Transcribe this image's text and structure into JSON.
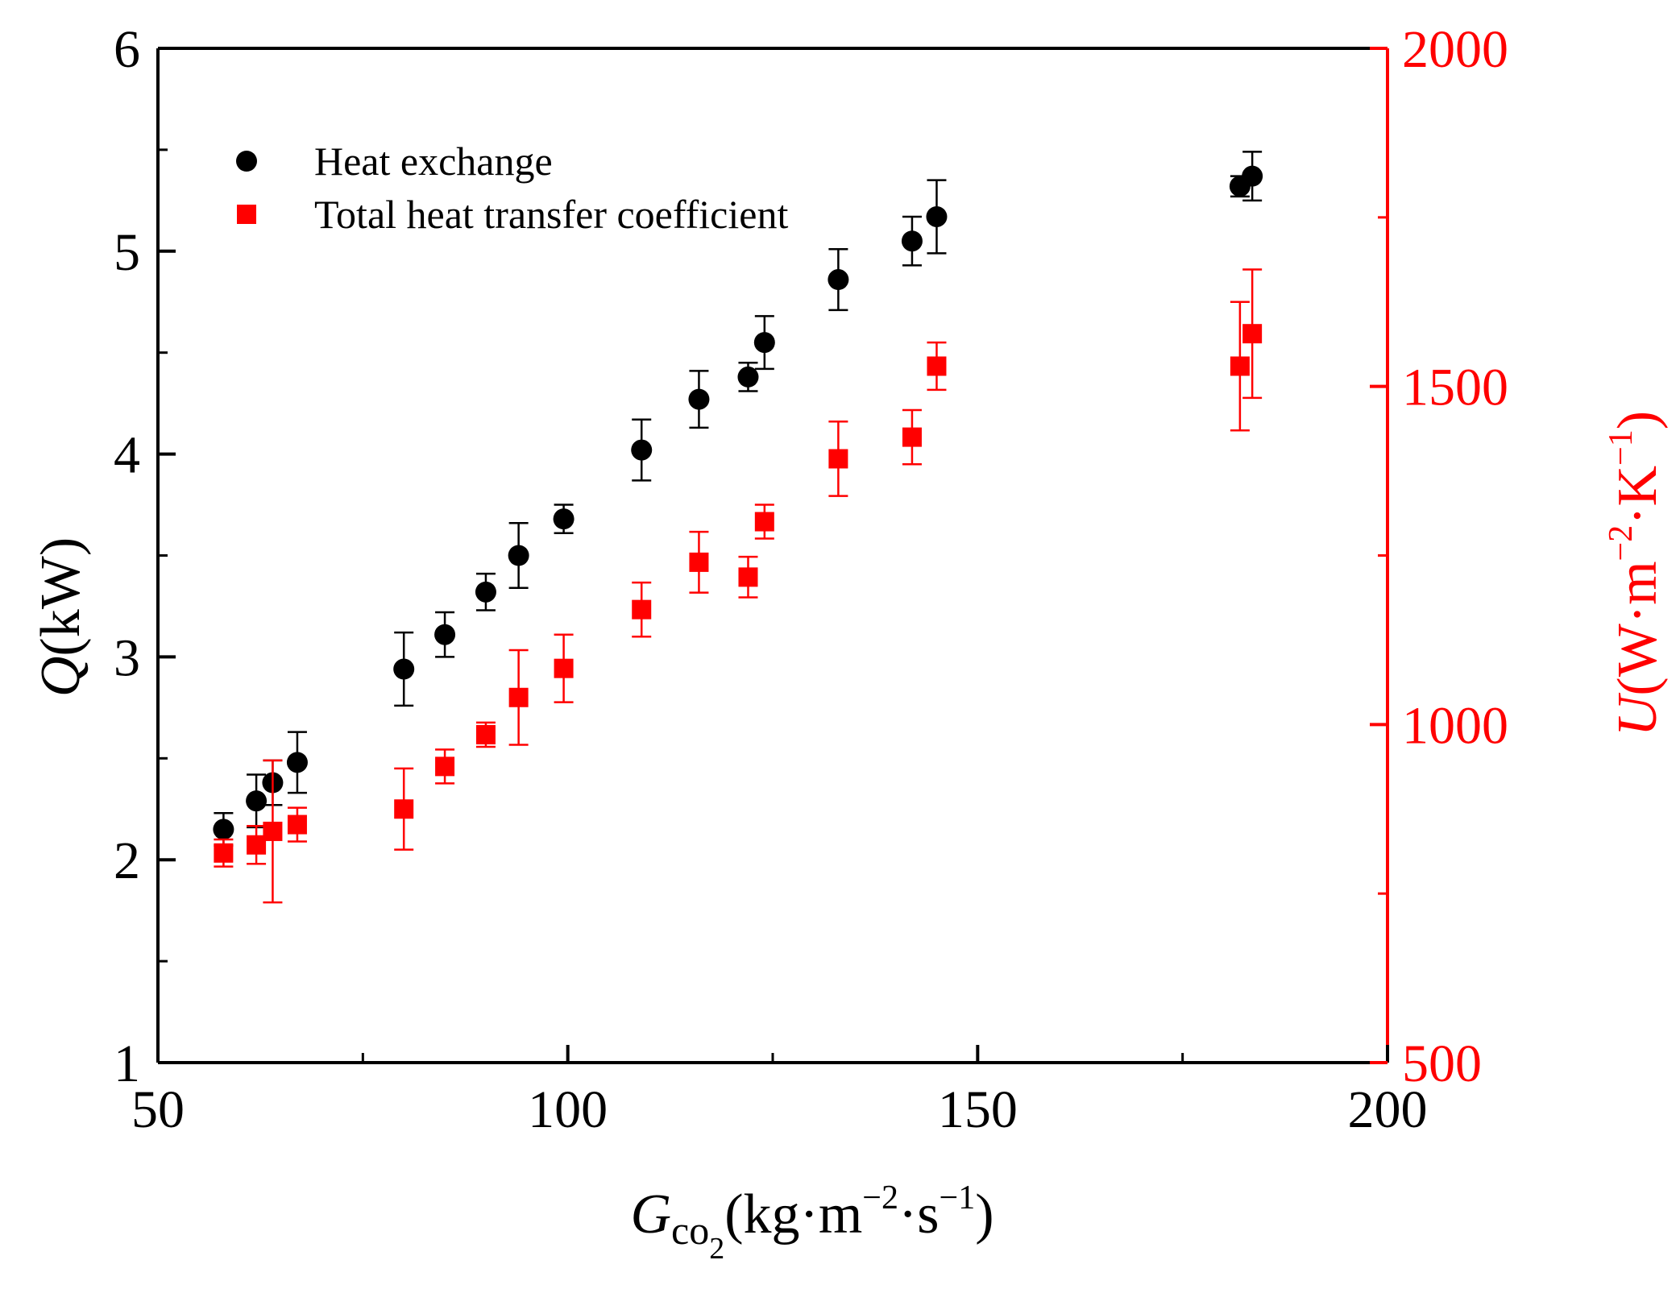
{
  "chart_data": {
    "type": "scatter",
    "title": "",
    "x_axis": {
      "label_var": "G",
      "label_sub": "co",
      "label_subsub": "2",
      "label_open": "(kg·m",
      "label_sup1": "−2",
      "label_mid": "·s",
      "label_sup2": "−1",
      "label_close": ")",
      "range": [
        50,
        200
      ],
      "ticks": [
        50,
        100,
        150,
        200
      ],
      "tick_labels": [
        "50",
        "100",
        "150",
        "200"
      ]
    },
    "y_left_axis": {
      "label_var": "Q",
      "label_unit": "(kW)",
      "range": [
        1,
        6
      ],
      "ticks": [
        1,
        2,
        3,
        4,
        5,
        6
      ],
      "tick_labels": [
        "1",
        "2",
        "3",
        "4",
        "5",
        "6"
      ],
      "color": "#000000"
    },
    "y_right_axis": {
      "label_var": "U",
      "label_open": "(W·m",
      "label_sup1": "−2",
      "label_mid": "·K",
      "label_sup2": "−1",
      "label_close": ")",
      "range": [
        500,
        2000
      ],
      "ticks": [
        500,
        1000,
        1500,
        2000
      ],
      "tick_labels": [
        "500",
        "1000",
        "1500",
        "2000"
      ],
      "color": "#ff0000"
    },
    "legend": {
      "placement": "top-left"
    },
    "grid": false,
    "series": [
      {
        "name": "Heat exchange",
        "axis": "left",
        "marker": "circle",
        "color": "#000000",
        "points": [
          {
            "x": 58,
            "y": 2.15,
            "err": 0.08
          },
          {
            "x": 62,
            "y": 2.29,
            "err": 0.13
          },
          {
            "x": 64,
            "y": 2.38,
            "err": 0.11
          },
          {
            "x": 67,
            "y": 2.48,
            "err": 0.15
          },
          {
            "x": 80,
            "y": 2.94,
            "err": 0.18
          },
          {
            "x": 85,
            "y": 3.11,
            "err": 0.11
          },
          {
            "x": 90,
            "y": 3.32,
            "err": 0.09
          },
          {
            "x": 94,
            "y": 3.5,
            "err": 0.16
          },
          {
            "x": 99.5,
            "y": 3.68,
            "err": 0.07
          },
          {
            "x": 109,
            "y": 4.02,
            "err": 0.15
          },
          {
            "x": 116,
            "y": 4.27,
            "err": 0.14
          },
          {
            "x": 122,
            "y": 4.38,
            "err": 0.07
          },
          {
            "x": 124,
            "y": 4.55,
            "err": 0.13
          },
          {
            "x": 133,
            "y": 4.86,
            "err": 0.15
          },
          {
            "x": 142,
            "y": 5.05,
            "err": 0.12
          },
          {
            "x": 145,
            "y": 5.17,
            "err": 0.18
          },
          {
            "x": 182,
            "y": 5.32,
            "err": 0.05
          },
          {
            "x": 183.5,
            "y": 5.37,
            "err": 0.12
          }
        ]
      },
      {
        "name": "Total heat transfer coefficient",
        "axis": "right",
        "marker": "square",
        "color": "#ff0000",
        "points": [
          {
            "x": 58,
            "y": 810,
            "err": 20
          },
          {
            "x": 62,
            "y": 822,
            "err": 28
          },
          {
            "x": 64,
            "y": 842,
            "err": 105
          },
          {
            "x": 67,
            "y": 852,
            "err": 25
          },
          {
            "x": 80,
            "y": 875,
            "err": 60
          },
          {
            "x": 85,
            "y": 938,
            "err": 25
          },
          {
            "x": 90,
            "y": 985,
            "err": 18
          },
          {
            "x": 94,
            "y": 1040,
            "err": 70
          },
          {
            "x": 99.5,
            "y": 1083,
            "err": 50
          },
          {
            "x": 109,
            "y": 1170,
            "err": 40
          },
          {
            "x": 116,
            "y": 1240,
            "err": 45
          },
          {
            "x": 122,
            "y": 1218,
            "err": 30
          },
          {
            "x": 124,
            "y": 1300,
            "err": 25
          },
          {
            "x": 133,
            "y": 1393,
            "err": 55
          },
          {
            "x": 142,
            "y": 1425,
            "err": 40
          },
          {
            "x": 145,
            "y": 1530,
            "err": 35
          },
          {
            "x": 182,
            "y": 1530,
            "err": 95
          },
          {
            "x": 183.5,
            "y": 1578,
            "err": 95
          }
        ]
      }
    ]
  }
}
